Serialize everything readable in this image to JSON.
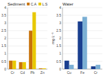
{
  "chart_data": [
    {
      "type": "bar",
      "title": "Sediment",
      "categories": [
        "Cr",
        "Cd",
        "Pb",
        "Zn"
      ],
      "series": [
        {
          "name": "C.A",
          "color": "#C8720A",
          "values": [
            0.55,
            0.45,
            2.5,
            0.05
          ]
        },
        {
          "name": "L.S",
          "color": "#E8C800",
          "values": [
            0.55,
            0.45,
            3.7,
            0.05
          ]
        }
      ],
      "ylim": [
        0,
        4
      ],
      "yticks": [
        0,
        0.5,
        1,
        1.5,
        2,
        2.5,
        3,
        3.5,
        4
      ],
      "grid": true,
      "legend": "upper right"
    },
    {
      "type": "bar",
      "title": "Water",
      "y_label": "mg L⁻¹",
      "categories": [
        "Cu",
        "Fe",
        "Cr"
      ],
      "series": [
        {
          "color": "#1A3F8F",
          "values": [
            0.55,
            3.1,
            0.18
          ]
        },
        {
          "color": "#7BAFD4",
          "values": [
            0.28,
            3.4,
            0.28
          ]
        }
      ],
      "ylim": [
        0,
        4
      ],
      "yticks": [
        0,
        0.5,
        1,
        1.5,
        2,
        2.5,
        3,
        3.5,
        4
      ],
      "grid": true
    }
  ]
}
